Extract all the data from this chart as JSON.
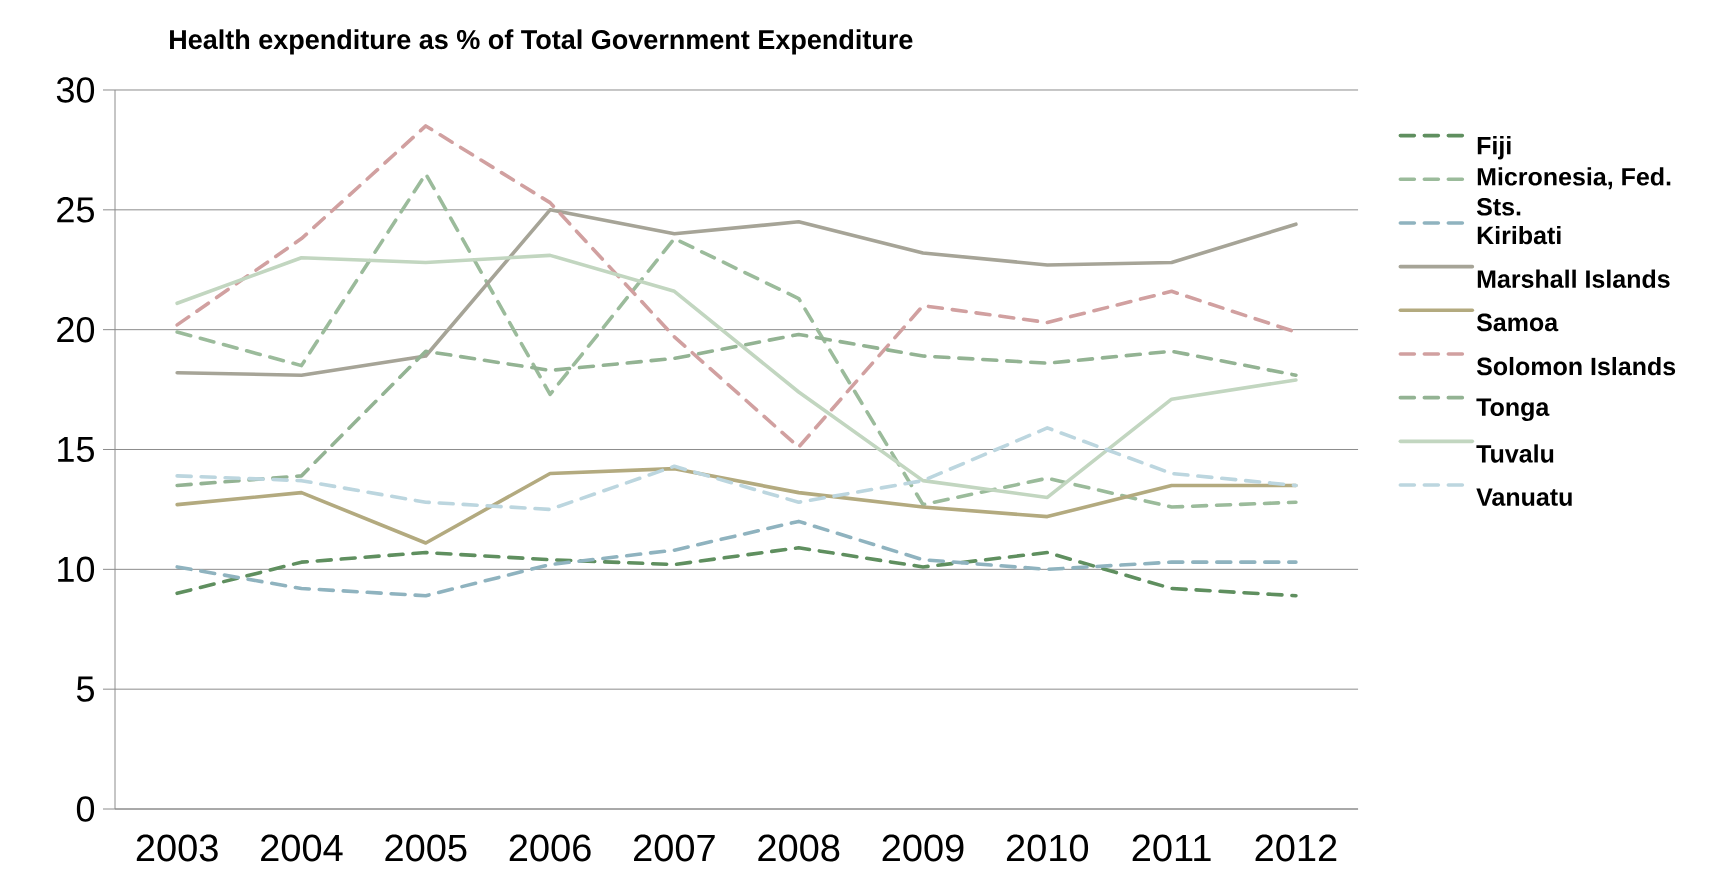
{
  "chart_data": {
    "type": "line",
    "title": "Health expenditure as % of Total Government Expenditure",
    "categories": [
      "2003",
      "2004",
      "2005",
      "2006",
      "2007",
      "2008",
      "2009",
      "2010",
      "2011",
      "2012"
    ],
    "ylim": [
      0,
      30
    ],
    "yticks": [
      0,
      5,
      10,
      15,
      20,
      25,
      30
    ],
    "grid": "y",
    "legend": "right",
    "marker": "none",
    "series": [
      {
        "name": "Fiji",
        "color": "#5f8f5f",
        "line_style": "dashed",
        "values": [
          9.0,
          10.3,
          10.7,
          10.4,
          10.2,
          10.9,
          10.1,
          10.7,
          9.2,
          8.9
        ]
      },
      {
        "name": "Micronesia, Fed. Sts.",
        "color": "#9bbb9b",
        "line_style": "dashed",
        "values": [
          19.9,
          18.5,
          26.5,
          17.3,
          23.8,
          21.3,
          12.7,
          13.8,
          12.6,
          12.8
        ]
      },
      {
        "name": "Kiribati",
        "color": "#8fb3bf",
        "line_style": "dashed",
        "values": [
          10.1,
          9.2,
          8.9,
          10.2,
          10.8,
          12.0,
          10.4,
          10.0,
          10.3,
          10.3
        ]
      },
      {
        "name": "Marshall Islands",
        "color": "#a6a497",
        "line_style": "solid",
        "values": [
          18.2,
          18.1,
          18.9,
          25.0,
          24.0,
          24.5,
          23.2,
          22.7,
          22.8,
          24.4
        ]
      },
      {
        "name": "Samoa",
        "color": "#b3aa7f",
        "line_style": "solid",
        "values": [
          12.7,
          13.2,
          11.1,
          14.0,
          14.2,
          13.2,
          12.6,
          12.2,
          13.5,
          13.5
        ]
      },
      {
        "name": "Solomon Islands",
        "color": "#d1a0a0",
        "line_style": "dashed",
        "values": [
          20.2,
          23.8,
          28.5,
          25.3,
          19.7,
          15.1,
          21.0,
          20.3,
          21.6,
          19.9
        ]
      },
      {
        "name": "Tonga",
        "color": "#93b393",
        "line_style": "dashed",
        "values": [
          13.5,
          13.9,
          19.1,
          18.3,
          18.8,
          19.8,
          18.9,
          18.6,
          19.1,
          18.1
        ]
      },
      {
        "name": "Tuvalu",
        "color": "#c2d6c0",
        "line_style": "solid",
        "values": [
          21.1,
          23.0,
          22.8,
          23.1,
          21.6,
          17.4,
          13.7,
          13.0,
          17.1,
          17.9
        ]
      },
      {
        "name": "Vanuatu",
        "color": "#bcd6df",
        "line_style": "dashed",
        "values": [
          13.9,
          13.7,
          12.8,
          12.5,
          14.3,
          12.8,
          13.7,
          15.9,
          14.0,
          13.5
        ]
      }
    ]
  }
}
